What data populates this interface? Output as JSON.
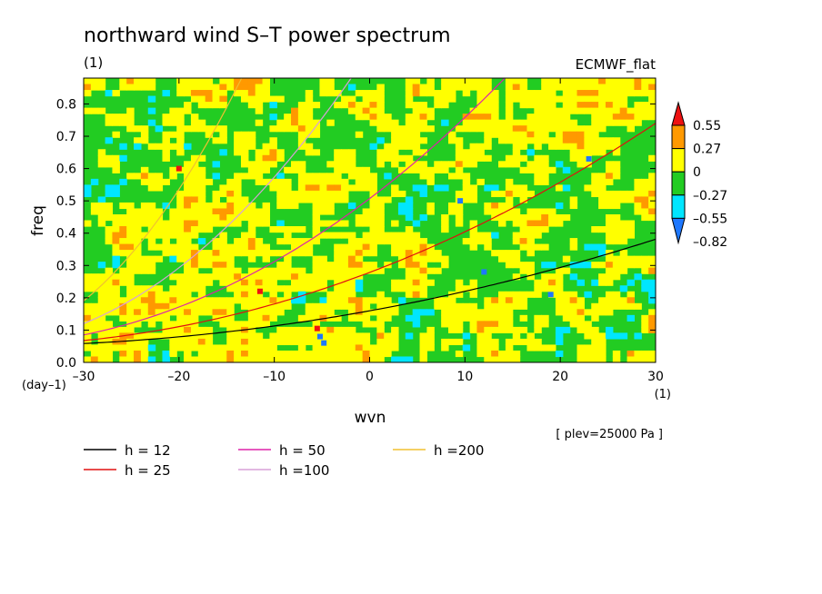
{
  "chart_data": {
    "type": "heatmap",
    "title": "northward wind S–T power spectrum",
    "subtitle_left": "(1)",
    "subtitle_right": "ECMWF_flat",
    "xlabel": "wvn",
    "ylabel": "freq",
    "x_unit": "(1)",
    "y_unit": "(day–1)",
    "xlim": [
      -30,
      30
    ],
    "ylim": [
      0,
      0.88
    ],
    "xticks": [
      -30,
      -20,
      -10,
      0,
      10,
      20,
      30
    ],
    "xtick_labels": [
      "–30",
      "–20",
      "–10",
      "0",
      "10",
      "20",
      "30"
    ],
    "yticks": [
      0,
      0.1,
      0.2,
      0.3,
      0.4,
      0.5,
      0.6,
      0.7,
      0.8
    ],
    "ytick_labels": [
      "0.0",
      "0.1",
      "0.2",
      "0.3",
      "0.4",
      "0.5",
      "0.6",
      "0.7",
      "0.8"
    ],
    "note": "[ plev=25000 Pa ]",
    "colorbar": {
      "levels": [
        -0.82,
        -0.55,
        -0.27,
        0,
        0.27,
        0.55
      ],
      "labels": [
        "–0.82",
        "–0.55",
        "–0.27",
        "0",
        "0.27",
        "0.55"
      ],
      "colors": [
        "#1e78ff",
        "#00e6ff",
        "#22cc22",
        "#ffff00",
        "#ff9900",
        "#ee1111"
      ],
      "extend": "both"
    },
    "field_note": "noisy field dominated by green (-0.27..0) and yellow (0..0.27) with scattered orange, cyan and few red/blue pixels",
    "dispersion_curves": [
      {
        "name": "h = 12",
        "h": 12,
        "color": "#000000"
      },
      {
        "name": "h = 25",
        "h": 25,
        "color": "#e01010"
      },
      {
        "name": "h = 50",
        "h": 50,
        "color": "#dd22aa"
      },
      {
        "name": "h =100",
        "h": 100,
        "color": "#d8a0d8"
      },
      {
        "name": "h =200",
        "h": 200,
        "color": "#f0c030"
      }
    ]
  }
}
